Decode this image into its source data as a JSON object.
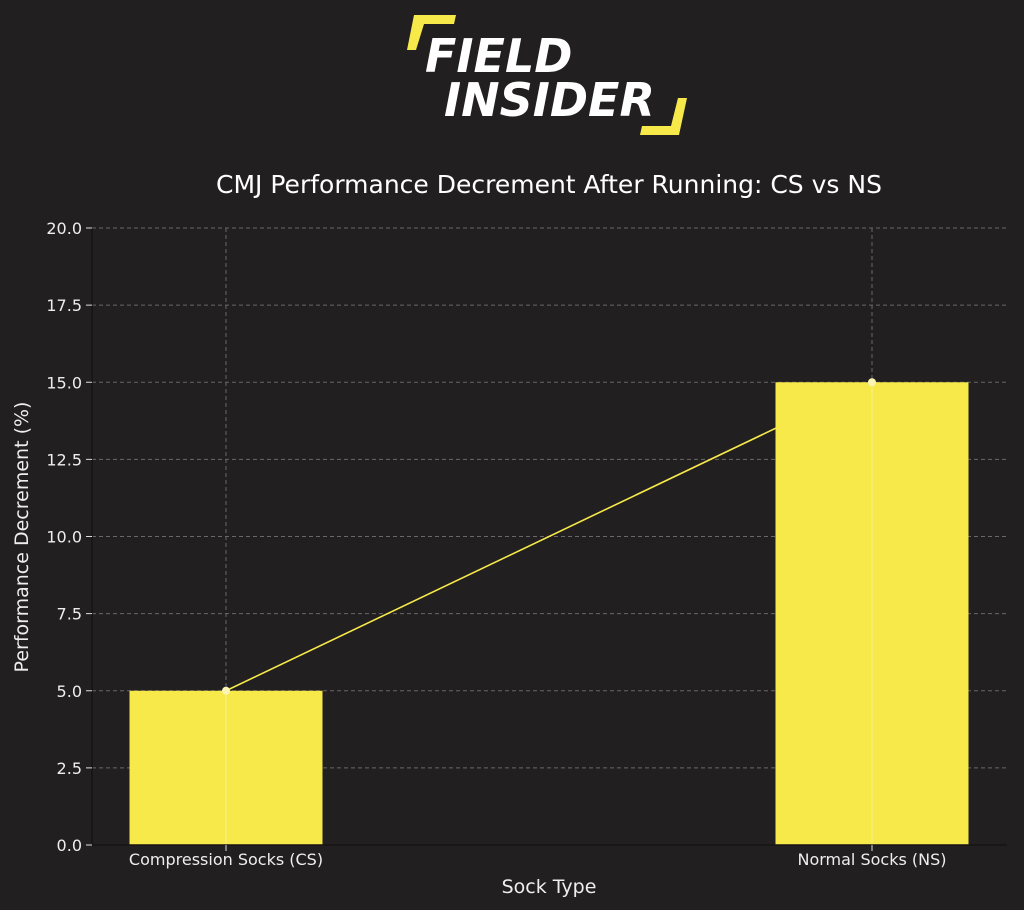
{
  "brand": {
    "line1": "FIELD",
    "line2": "INSIDER",
    "accent_color": "#f7e94a",
    "text_color": "#ffffff"
  },
  "chart_data": {
    "type": "bar",
    "title": "CMJ Performance Decrement After Running: CS vs NS",
    "xlabel": "Sock Type",
    "ylabel": "Performance Decrement (%)",
    "categories": [
      "Compression Socks (CS)",
      "Normal Socks (NS)"
    ],
    "values": [
      5.0,
      15.0
    ],
    "overlay_line": true,
    "ylim": [
      0,
      20
    ],
    "yticks": [
      "0.0",
      "2.5",
      "5.0",
      "7.5",
      "10.0",
      "12.5",
      "15.0",
      "17.5",
      "20.0"
    ],
    "grid": true,
    "bar_color": "#f7e94a",
    "line_color": "#f7e94a",
    "background_color": "#221f20"
  }
}
